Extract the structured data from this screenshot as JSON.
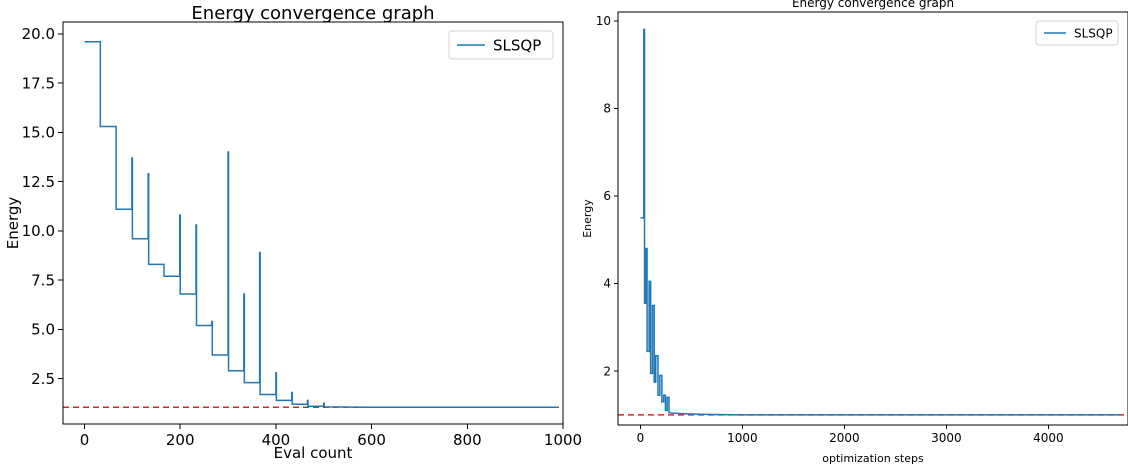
{
  "chart_data": [
    {
      "type": "line",
      "title": "Energy convergence graph",
      "xlabel": "Eval count",
      "ylabel": "Energy",
      "xlim": [
        -45,
        1000
      ],
      "ylim": [
        0.2,
        20.6
      ],
      "xticks": [
        0,
        200,
        400,
        600,
        800,
        1000
      ],
      "yticks": [
        2.5,
        5.0,
        7.5,
        10.0,
        12.5,
        15.0,
        17.5,
        20.0
      ],
      "ytick_labels": [
        "2.5",
        "5.0",
        "7.5",
        "10.0",
        "12.5",
        "15.0",
        "17.5",
        "20.0"
      ],
      "grid": false,
      "legend": "upper-right",
      "reference_line": {
        "y": 1.05,
        "color": "#d62728",
        "style": "dashed"
      },
      "series": [
        {
          "name": "SLSQP",
          "color": "#1f77b4",
          "x": [
            0,
            33,
            33,
            66,
            66,
            99,
            99,
            100,
            100,
            133,
            133,
            134,
            134,
            166,
            166,
            199,
            199,
            200,
            200,
            233,
            233,
            234,
            234,
            266,
            266,
            267,
            267,
            300,
            300,
            301,
            301,
            333,
            333,
            334,
            334,
            366,
            366,
            367,
            367,
            400,
            400,
            401,
            401,
            433,
            433,
            434,
            434,
            466,
            466,
            467,
            467,
            500,
            500,
            501,
            501,
            533,
            600,
            700,
            800,
            990
          ],
          "y": [
            19.6,
            19.6,
            15.3,
            15.3,
            11.1,
            11.1,
            13.7,
            13.7,
            9.6,
            9.6,
            12.9,
            12.9,
            8.3,
            8.3,
            7.7,
            7.7,
            10.8,
            10.8,
            6.8,
            6.8,
            10.3,
            10.3,
            5.2,
            5.2,
            5.4,
            5.4,
            3.7,
            3.7,
            14.0,
            14.0,
            2.9,
            2.9,
            6.8,
            6.8,
            2.3,
            2.3,
            8.9,
            8.9,
            1.7,
            1.7,
            2.8,
            2.8,
            1.4,
            1.4,
            1.8,
            1.8,
            1.2,
            1.2,
            1.4,
            1.4,
            1.1,
            1.1,
            1.25,
            1.25,
            1.07,
            1.06,
            1.05,
            1.05,
            1.05,
            1.05
          ]
        }
      ]
    },
    {
      "type": "line",
      "title": "Energy convergence graph",
      "xlabel": "optimization steps",
      "ylabel": "Energy",
      "xlim": [
        -220,
        4780
      ],
      "ylim": [
        0.77,
        10.2
      ],
      "xticks": [
        0,
        1000,
        2000,
        3000,
        4000
      ],
      "yticks": [
        2,
        4,
        6,
        8,
        10
      ],
      "ytick_labels": [
        "2",
        "4",
        "6",
        "8",
        "10"
      ],
      "grid": false,
      "legend": "upper-right",
      "reference_line": {
        "y": 1.0,
        "color": "#d62728",
        "style": "dashed"
      },
      "series": [
        {
          "name": "SLSQP",
          "color": "#1f77b4",
          "x": [
            0,
            33,
            33,
            40,
            40,
            55,
            55,
            65,
            65,
            85,
            85,
            100,
            100,
            118,
            118,
            135,
            135,
            150,
            150,
            172,
            172,
            190,
            190,
            210,
            210,
            228,
            228,
            245,
            245,
            262,
            262,
            280,
            280,
            320,
            400,
            500,
            700,
            1000,
            1500,
            2000,
            3000,
            4000,
            4700
          ],
          "y": [
            5.5,
            5.5,
            9.8,
            9.8,
            3.55,
            3.55,
            4.8,
            4.8,
            2.45,
            2.45,
            4.05,
            4.05,
            1.95,
            1.95,
            3.5,
            3.5,
            1.75,
            1.75,
            2.35,
            2.35,
            1.45,
            1.45,
            1.9,
            1.9,
            1.3,
            1.3,
            1.45,
            1.45,
            1.1,
            1.1,
            1.4,
            1.4,
            1.05,
            1.04,
            1.03,
            1.02,
            1.01,
            1.0,
            1.0,
            1.0,
            1.0,
            1.0,
            1.0
          ]
        }
      ]
    }
  ]
}
